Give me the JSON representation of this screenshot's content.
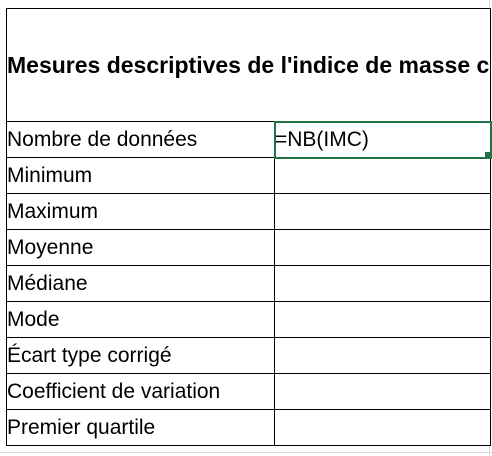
{
  "table": {
    "title": "Mesures descriptives de l'indice de masse corporelle d'un échantillon de femmes d'origine pima, Arizona",
    "rows": [
      {
        "label": "Nombre de données",
        "value": "=NB(IMC)"
      },
      {
        "label": "Minimum",
        "value": ""
      },
      {
        "label": "Maximum",
        "value": ""
      },
      {
        "label": "Moyenne",
        "value": ""
      },
      {
        "label": "Médiane",
        "value": ""
      },
      {
        "label": "Mode",
        "value": ""
      },
      {
        "label": "Écart type corrigé",
        "value": ""
      },
      {
        "label": "Coefficient de variation",
        "value": ""
      },
      {
        "label": "Premier quartile",
        "value": ""
      }
    ]
  },
  "colors": {
    "active_cell_border": "#217346",
    "table_border": "#000000",
    "gridline": "#d9d9d9"
  }
}
